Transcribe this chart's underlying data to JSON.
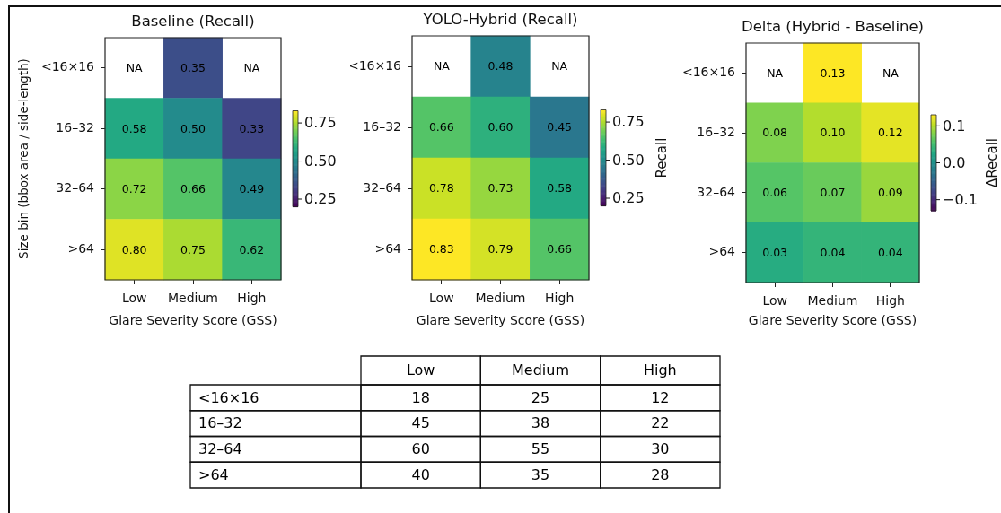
{
  "chart_data": [
    {
      "type": "heatmap",
      "title": "Baseline (Recall)",
      "xlabel": "Glare Severity Score (GSS)",
      "ylabel": "Size bin (bbox area / side-length)",
      "categories": [
        "Low",
        "Medium",
        "High"
      ],
      "y_categories": [
        "<16×16",
        "16–32",
        "32–64",
        ">64"
      ],
      "cells": [
        [
          null,
          0.35,
          null
        ],
        [
          0.58,
          0.5,
          0.33
        ],
        [
          0.72,
          0.66,
          0.49
        ],
        [
          0.8,
          0.75,
          0.62
        ]
      ],
      "cell_labels": [
        [
          "NA",
          "0.35",
          "NA"
        ],
        [
          "0.58",
          "0.50",
          "0.33"
        ],
        [
          "0.72",
          "0.66",
          "0.49"
        ],
        [
          "0.80",
          "0.75",
          "0.62"
        ]
      ],
      "clim": [
        0.2,
        0.83
      ],
      "cticks": [
        0.25,
        {
          "value": 0.5,
          "label": "0.50"
        },
        0.75
      ]
    },
    {
      "type": "heatmap",
      "title": "YOLO-Hybrid (Recall)",
      "xlabel": "Glare Severity Score (GSS)",
      "clabel": "Recall",
      "categories": [
        "Low",
        "Medium",
        "High"
      ],
      "y_categories": [
        "<16×16",
        "16–32",
        "32–64",
        ">64"
      ],
      "cells": [
        [
          null,
          0.48,
          null
        ],
        [
          0.66,
          0.6,
          0.45
        ],
        [
          0.78,
          0.73,
          0.58
        ],
        [
          0.83,
          0.79,
          0.66
        ]
      ],
      "cell_labels": [
        [
          "NA",
          "0.48",
          "NA"
        ],
        [
          "0.66",
          "0.60",
          "0.45"
        ],
        [
          "0.78",
          "0.73",
          "0.58"
        ],
        [
          "0.83",
          "0.79",
          "0.66"
        ]
      ],
      "clim": [
        0.2,
        0.83
      ],
      "cticks": [
        0.25,
        {
          "value": 0.5,
          "label": "0.50"
        },
        0.75
      ]
    },
    {
      "type": "heatmap",
      "title": "Delta (Hybrid - Baseline)",
      "xlabel": "Glare Severity Score (GSS)",
      "clabel": "ΔRecall",
      "categories": [
        "Low",
        "Medium",
        "High"
      ],
      "y_categories": [
        "<16×16",
        "16–32",
        "32–64",
        ">64"
      ],
      "cells": [
        [
          null,
          0.13,
          null
        ],
        [
          0.08,
          0.1,
          0.12
        ],
        [
          0.06,
          0.07,
          0.09
        ],
        [
          0.03,
          0.04,
          0.04
        ]
      ],
      "cell_labels": [
        [
          "NA",
          "0.13",
          "NA"
        ],
        [
          "0.08",
          "0.10",
          "0.12"
        ],
        [
          "0.06",
          "0.07",
          "0.09"
        ],
        [
          "0.03",
          "0.04",
          "0.04"
        ]
      ],
      "clim": [
        -0.13,
        0.13
      ],
      "cticks": [
        {
          "value": -0.1,
          "label": "−0.1"
        },
        {
          "value": 0,
          "label": "0.0"
        },
        0.1
      ]
    },
    {
      "type": "heatmap",
      "categories": [
        "Low",
        "Medium",
        "High"
      ],
      "y_categories": [
        "<16×16",
        "16–32",
        "32–64",
        ">64"
      ],
      "cells": [
        [
          18,
          25,
          12
        ],
        [
          45,
          38,
          22
        ],
        [
          60,
          55,
          30
        ],
        [
          40,
          35,
          28
        ]
      ],
      "data_labels": true
    }
  ]
}
